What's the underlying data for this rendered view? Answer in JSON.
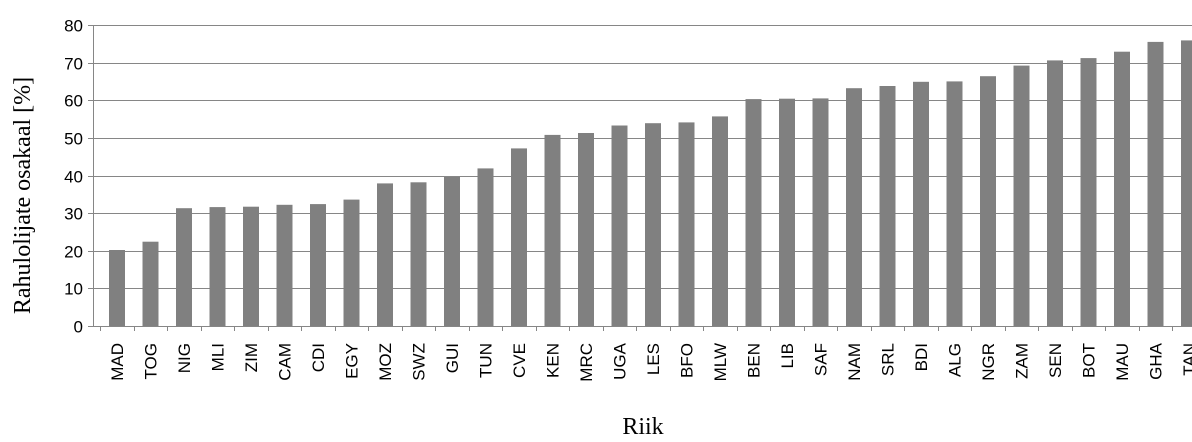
{
  "chart_data": {
    "type": "bar",
    "title": "",
    "xlabel": "Riik",
    "ylabel": "Rahulolijate osakaal [%]",
    "ylim": [
      0,
      80
    ],
    "yticks": [
      0,
      10,
      20,
      30,
      40,
      50,
      60,
      70,
      80
    ],
    "grid": true,
    "colors": {
      "bar": "#808080",
      "grid": "#868686"
    },
    "categories": [
      "MAD",
      "TOG",
      "NIG",
      "MLI",
      "ZIM",
      "CAM",
      "CDI",
      "EGY",
      "MOZ",
      "SWZ",
      "GUI",
      "TUN",
      "CVE",
      "KEN",
      "MRC",
      "UGA",
      "LES",
      "BFO",
      "MLW",
      "BEN",
      "LIB",
      "SAF",
      "NAM",
      "SRL",
      "BDI",
      "ALG",
      "NGR",
      "ZAM",
      "SEN",
      "BOT",
      "MAU",
      "GHA",
      "TAN"
    ],
    "values": [
      20.2,
      22.4,
      31.3,
      31.6,
      31.7,
      32.2,
      32.4,
      33.6,
      37.9,
      38.2,
      39.6,
      41.9,
      47.2,
      50.8,
      51.3,
      53.3,
      53.9,
      54.1,
      55.7,
      60.3,
      60.4,
      60.5,
      63.2,
      63.8,
      64.9,
      65.0,
      66.4,
      69.2,
      70.6,
      71.2,
      72.9,
      75.5,
      75.9
    ]
  }
}
